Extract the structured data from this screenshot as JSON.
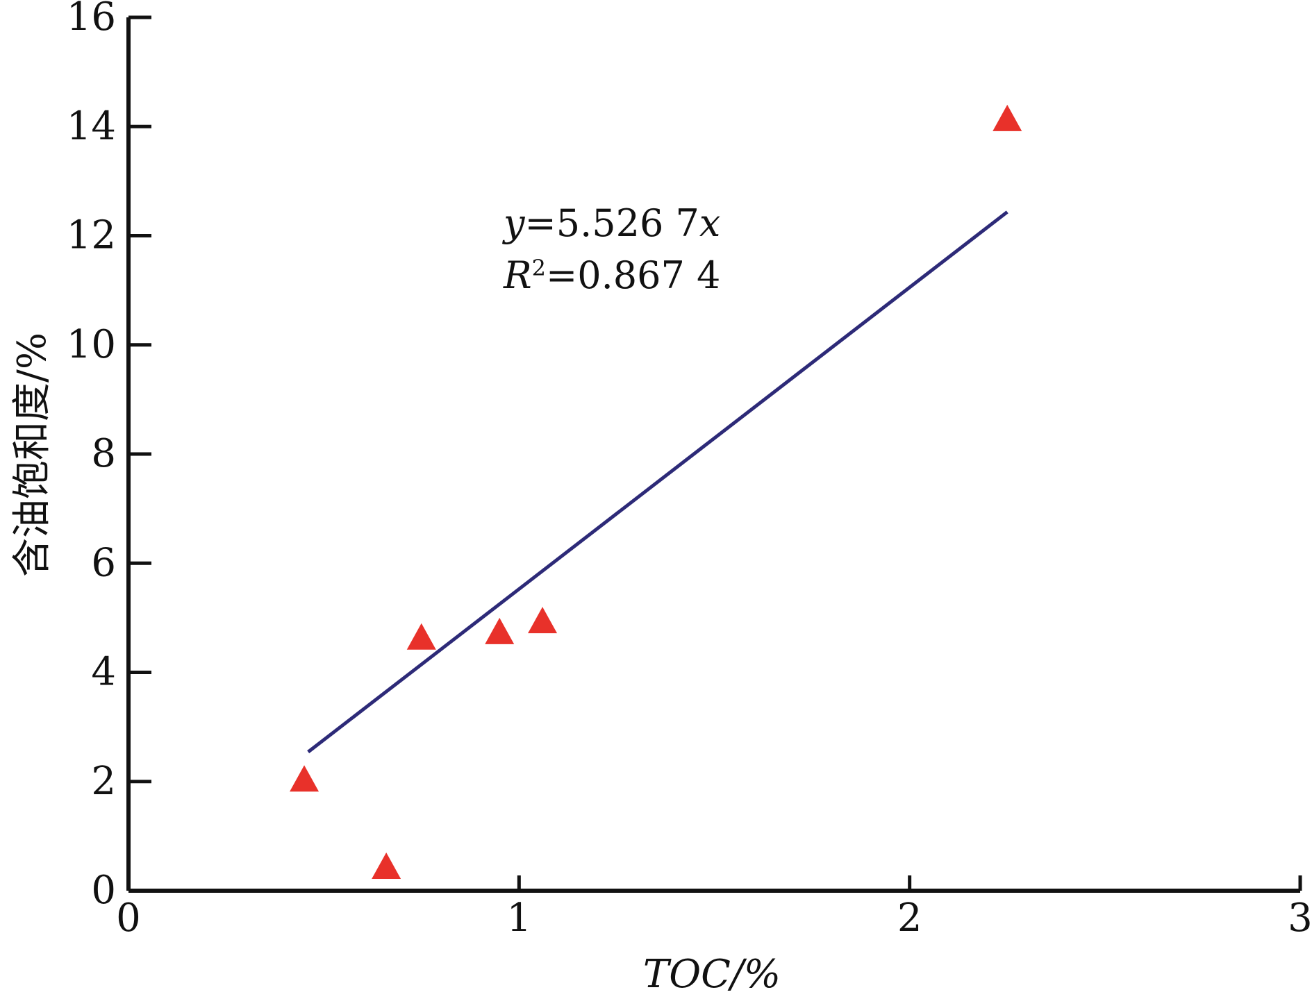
{
  "chart_data": {
    "type": "scatter",
    "title": "",
    "xlabel": "TOC/%",
    "ylabel": "含油饱和度/%",
    "xlim": [
      0,
      3
    ],
    "ylim": [
      0,
      16
    ],
    "x_ticks": [
      0,
      1,
      2,
      3
    ],
    "y_ticks": [
      0,
      2,
      4,
      6,
      8,
      10,
      12,
      14,
      16
    ],
    "grid": false,
    "legend": "none",
    "series": [
      {
        "marker": "triangle",
        "color": "#e8312a",
        "x": [
          0.45,
          0.66,
          0.75,
          0.95,
          1.06,
          2.25
        ],
        "y": [
          2.0,
          0.4,
          4.6,
          4.7,
          4.9,
          14.1
        ]
      }
    ],
    "trendline": {
      "color": "#2d2a78",
      "slope": 5.5267,
      "x_range": [
        0.46,
        2.25
      ],
      "equation_y": "y",
      "equation_rest": "=5.526 7",
      "equation_x": "x",
      "r2_label": "R",
      "r2_sup": "2",
      "r2_value": "=0.867 4"
    }
  }
}
